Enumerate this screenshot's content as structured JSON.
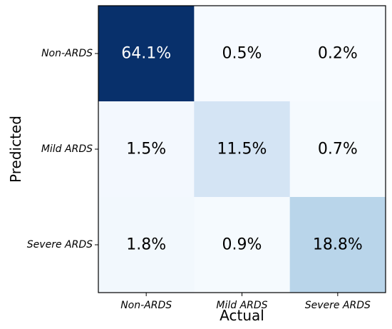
{
  "chart_data": {
    "type": "heatmap",
    "xlabel": "Actual",
    "ylabel": "Predicted",
    "x_categories": [
      "Non-ARDS",
      "Mild ARDS",
      "Severe ARDS"
    ],
    "y_categories": [
      "Non-ARDS",
      "Mild ARDS",
      "Severe ARDS"
    ],
    "values": [
      [
        64.1,
        0.5,
        0.2
      ],
      [
        1.5,
        11.5,
        0.7
      ],
      [
        1.8,
        0.9,
        18.8
      ]
    ],
    "value_labels": [
      [
        "64.1%",
        "0.5%",
        "0.2%"
      ],
      [
        "1.5%",
        "11.5%",
        "0.7%"
      ],
      [
        "1.8%",
        "0.9%",
        "18.8%"
      ]
    ],
    "colormap": "Blues",
    "colors": {
      "low": "#f7fbff",
      "high": "#08306b"
    },
    "grid": false,
    "legend": "none"
  }
}
